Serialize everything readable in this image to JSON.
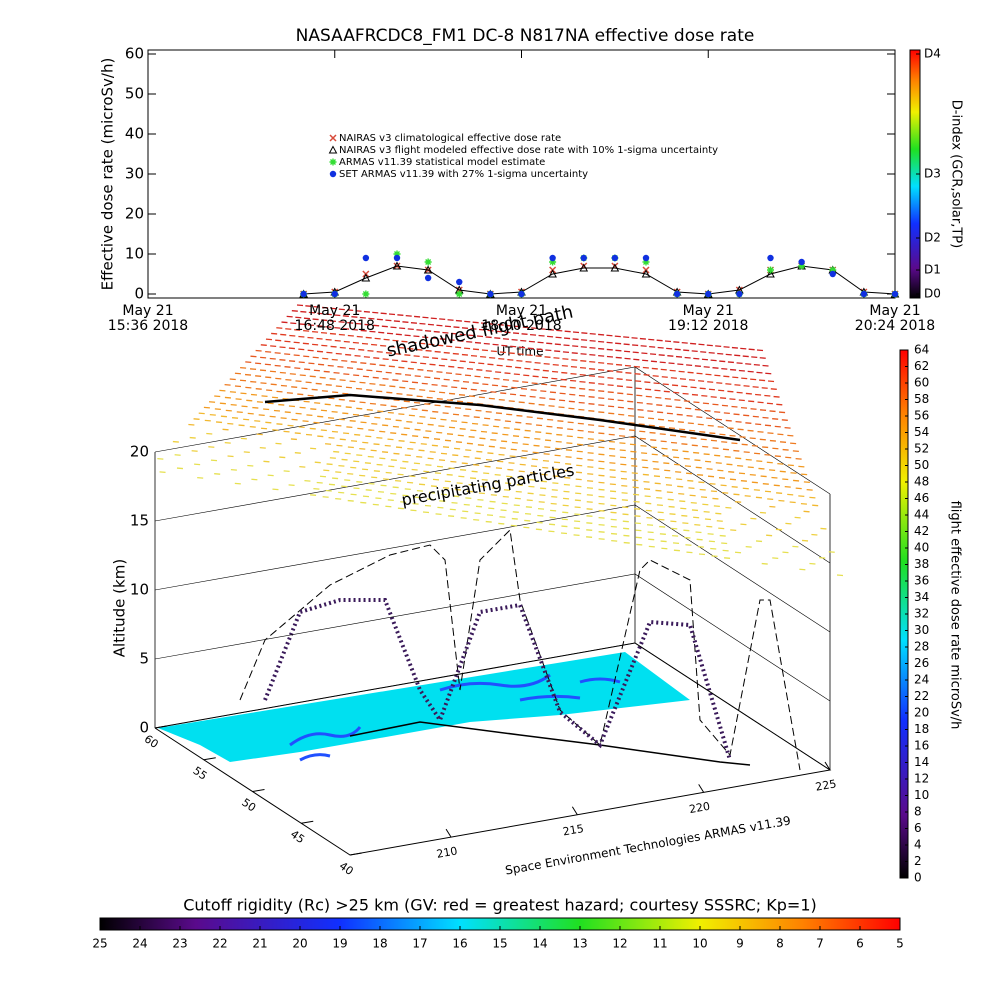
{
  "chart_data": {
    "type": "line",
    "title": "NASAAFRCDC8_FM1 DC-8   N817NA effective dose rate",
    "ylabel": "Effective dose rate (microSv/h)",
    "xlabel": "UT time",
    "y2label": "D-index (GCR,solar,TP)",
    "x": [
      "2018-05-21T16:36",
      "2018-05-21T16:48",
      "2018-05-21T17:00",
      "2018-05-21T17:12",
      "2018-05-21T17:24",
      "2018-05-21T17:36",
      "2018-05-21T17:48",
      "2018-05-21T18:00",
      "2018-05-21T18:12",
      "2018-05-21T18:24",
      "2018-05-21T18:36",
      "2018-05-21T18:48",
      "2018-05-21T19:00",
      "2018-05-21T19:12",
      "2018-05-21T19:24",
      "2018-05-21T19:36",
      "2018-05-21T19:48",
      "2018-05-21T20:00",
      "2018-05-21T20:12",
      "2018-05-21T20:24"
    ],
    "xlim": [
      "2018-05-21T15:36",
      "2018-05-21T20:24"
    ],
    "xticks": [
      {
        "value": "2018-05-21T15:36",
        "label": "May 21\n15:36 2018"
      },
      {
        "value": "2018-05-21T16:48",
        "label": "May 21\n16:48 2018"
      },
      {
        "value": "2018-05-21T18:00",
        "label": "May 21\n18:00 2018"
      },
      {
        "value": "2018-05-21T19:12",
        "label": "May 21\n19:12 2018"
      },
      {
        "value": "2018-05-21T20:24",
        "label": "May 21\n20:24 2018"
      }
    ],
    "ylim": [
      -1,
      61
    ],
    "yticks": [
      0,
      10,
      20,
      30,
      40,
      50,
      60
    ],
    "y2lim": [
      -1,
      61
    ],
    "y2ticks": [
      {
        "value": 0,
        "label": "D0"
      },
      {
        "value": 6,
        "label": "D1"
      },
      {
        "value": 14,
        "label": "D2"
      },
      {
        "value": 30,
        "label": "D3"
      },
      {
        "value": 60,
        "label": "D4"
      }
    ],
    "series": [
      {
        "name": "NAIRAS v3 climatological effective dose rate",
        "color": "#d84a3a",
        "marker": "x",
        "values": [
          0,
          0.5,
          5,
          7,
          6,
          1,
          0,
          0.5,
          6,
          7,
          7,
          6,
          0.5,
          0,
          1,
          6,
          7,
          6,
          0.5,
          0
        ]
      },
      {
        "name": "NAIRAS v3 flight modeled effective dose rate with 10% 1-sigma uncertainty",
        "color": "#000000",
        "marker": "triangle",
        "line": true,
        "values": [
          0,
          0.5,
          4,
          7,
          6,
          1,
          0,
          0.5,
          5,
          6.5,
          6.5,
          5,
          0.5,
          0,
          1,
          5,
          7,
          6,
          0.5,
          0
        ]
      },
      {
        "name": "ARMAS v11.39 statistical model estimate",
        "color": "#33dd33",
        "marker": "asterisk",
        "values": [
          0,
          0,
          0,
          10,
          8,
          0,
          0,
          0,
          8,
          9,
          9,
          8,
          0,
          0,
          0,
          6,
          7,
          6,
          0,
          0
        ]
      },
      {
        "name": "SET ARMAS v11.39 with 27% 1-sigma uncertainty",
        "color": "#1030e0",
        "marker": "circle",
        "values": [
          0,
          0,
          9,
          9,
          4,
          3,
          0,
          0,
          9,
          9,
          9,
          9,
          0,
          0,
          0,
          9,
          8,
          5,
          0,
          0
        ]
      }
    ]
  },
  "flight_panel": {
    "zlabel": "Altitude (km)",
    "zlim": [
      0,
      20
    ],
    "zticks": [
      0,
      5,
      10,
      15,
      20
    ],
    "latlim": [
      40,
      60
    ],
    "latticks": [
      40,
      45,
      50,
      55,
      60
    ],
    "lonlim": [
      206,
      225
    ],
    "lonticks": [
      210,
      215,
      220,
      225
    ],
    "annotations": [
      "shadowed flight path",
      "precipitating particles",
      "Space Environment Technologies ARMAS v11.39"
    ]
  },
  "dose_colorbar": {
    "label": "flight effective dose rate microSv/h",
    "lim": [
      0,
      64
    ],
    "ticks": [
      0,
      2,
      4,
      6,
      8,
      10,
      12,
      14,
      16,
      18,
      20,
      22,
      24,
      26,
      28,
      30,
      32,
      34,
      36,
      38,
      40,
      42,
      44,
      46,
      48,
      50,
      52,
      54,
      56,
      58,
      60,
      62,
      64
    ]
  },
  "rigidity_colorbar": {
    "title": "Cutoff rigidity (Rc) >25 km (GV: red = greatest hazard; courtesy SSSRC; Kp=1)",
    "lim": [
      25,
      5
    ],
    "ticks": [
      25,
      24,
      23,
      22,
      21,
      20,
      19,
      18,
      17,
      16,
      15,
      14,
      13,
      12,
      11,
      10,
      9,
      8,
      7,
      6,
      5
    ]
  }
}
